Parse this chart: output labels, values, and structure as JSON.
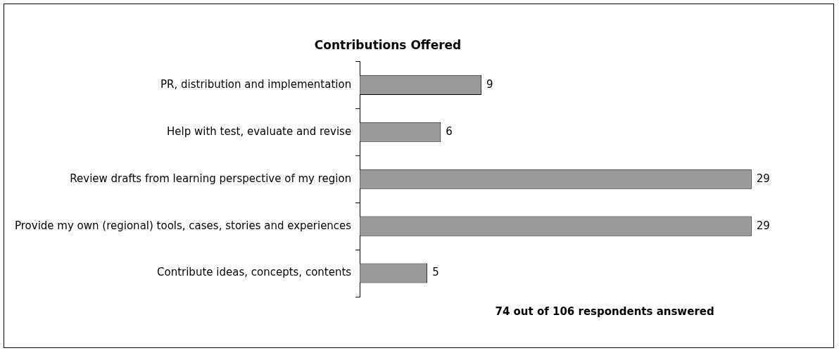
{
  "chart_data": {
    "type": "bar",
    "orientation": "horizontal",
    "title": "Contributions Offered",
    "categories": [
      "PR, distribution and implementation",
      "Help with test, evaluate and revise",
      "Review drafts from learning perspective of my region",
      "Provide my own (regional) tools, cases, stories and experiences",
      "Contribute ideas, concepts, contents"
    ],
    "values": [
      9,
      6,
      29,
      29,
      5
    ],
    "color": "#9a9a9a",
    "data_labels": true,
    "legend": false,
    "annotations": [
      "74 out of 106 respondents answered"
    ]
  }
}
